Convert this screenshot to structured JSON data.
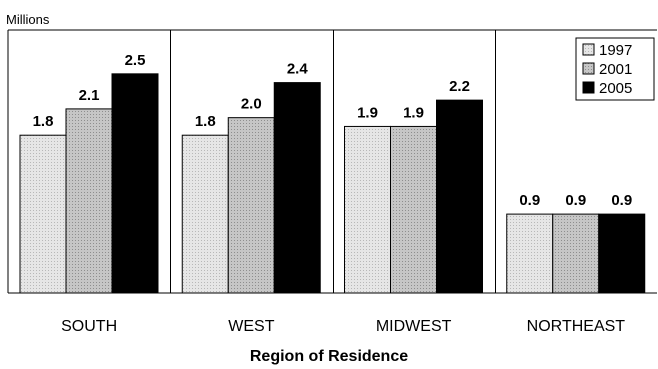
{
  "chart_data": {
    "type": "bar",
    "yunit": "Millions",
    "xlabel": "Region of Residence",
    "categories": [
      "SOUTH",
      "WEST",
      "MIDWEST",
      "NORTHEAST"
    ],
    "series": [
      {
        "name": "1997",
        "color": "#e0e0e0",
        "values": [
          1.8,
          1.8,
          1.9,
          0.9
        ]
      },
      {
        "name": "2001",
        "color": "#c2c2c2",
        "values": [
          2.1,
          2.0,
          1.9,
          0.9
        ]
      },
      {
        "name": "2005",
        "color": "#000000",
        "values": [
          2.5,
          2.4,
          2.2,
          0.9
        ]
      }
    ],
    "ylim": [
      0,
      3.0
    ],
    "grid": false,
    "legend_position": "top-right"
  }
}
